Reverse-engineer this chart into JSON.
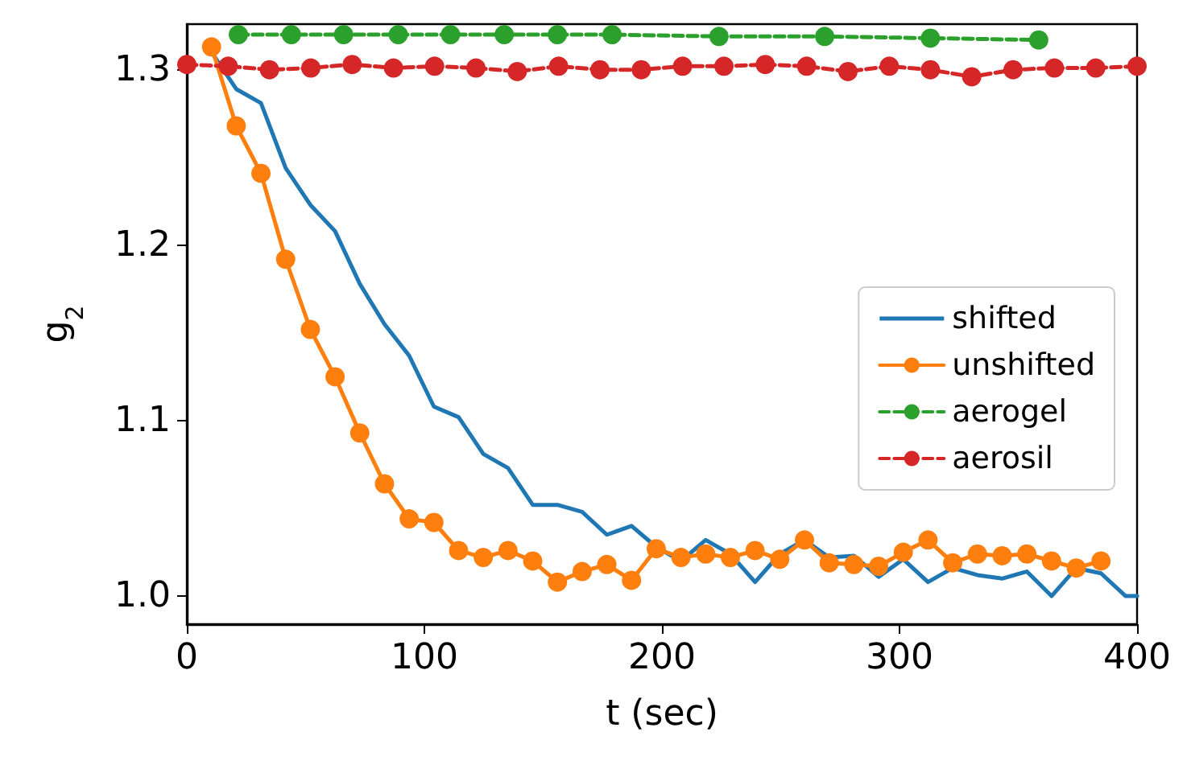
{
  "chart_data": {
    "type": "line",
    "xlabel": "t (sec)",
    "ylabel": "g$_{2}$",
    "xlim": [
      0,
      400
    ],
    "ylim": [
      0.984,
      1.326
    ],
    "xticks": [
      0,
      100,
      200,
      300,
      400
    ],
    "yticks": [
      {
        "value": 1.0,
        "label": "1.0"
      },
      {
        "value": 1.1,
        "label": "1.1"
      },
      {
        "value": 1.2,
        "label": "1.2"
      },
      {
        "value": 1.3,
        "label": "1.3"
      }
    ],
    "grid": false,
    "legend": "right",
    "series": [
      {
        "name": "shifted",
        "color": "#1f77b4",
        "marker": "none",
        "line_style": "solid",
        "x": [
          10.4,
          20.8,
          31.2,
          41.6,
          52,
          62.4,
          72.8,
          83.2,
          93.6,
          104,
          114.4,
          124.8,
          135.2,
          145.6,
          156,
          166.4,
          176.8,
          187.2,
          197.6,
          208,
          218.4,
          228.8,
          239.2,
          249.6,
          260,
          270.4,
          280.8,
          291.2,
          301.6,
          312,
          322.4,
          332.8,
          343.2,
          353.6,
          364,
          374.4,
          384.8,
          395.2,
          400
        ],
        "values": [
          1.31,
          1.289,
          1.281,
          1.244,
          1.223,
          1.208,
          1.178,
          1.155,
          1.137,
          1.108,
          1.102,
          1.081,
          1.073,
          1.052,
          1.052,
          1.048,
          1.035,
          1.04,
          1.028,
          1.02,
          1.032,
          1.024,
          1.008,
          1.024,
          1.032,
          1.022,
          1.023,
          1.011,
          1.021,
          1.008,
          1.016,
          1.012,
          1.01,
          1.014,
          1.0,
          1.016,
          1.013,
          1.0,
          1.0
        ]
      },
      {
        "name": "unshifted",
        "color": "#ff7f0e",
        "marker": "circle",
        "line_style": "solid",
        "x": [
          10.4,
          20.8,
          31.2,
          41.6,
          52,
          62.4,
          72.8,
          83.2,
          93.6,
          104,
          114.4,
          124.8,
          135.2,
          145.6,
          156,
          166.4,
          176.8,
          187.2,
          197.6,
          208,
          218.4,
          228.8,
          239.2,
          249.6,
          260,
          270.4,
          280.8,
          291.2,
          301.6,
          312,
          322.4,
          332.8,
          343.2,
          353.6,
          364,
          374.4,
          384.8
        ],
        "values": [
          1.313,
          1.268,
          1.241,
          1.192,
          1.152,
          1.125,
          1.093,
          1.064,
          1.044,
          1.042,
          1.026,
          1.022,
          1.026,
          1.02,
          1.008,
          1.014,
          1.018,
          1.009,
          1.027,
          1.022,
          1.024,
          1.022,
          1.026,
          1.021,
          1.032,
          1.019,
          1.018,
          1.017,
          1.025,
          1.032,
          1.019,
          1.024,
          1.023,
          1.024,
          1.02,
          1.016,
          1.02
        ]
      },
      {
        "name": "aerogel",
        "color": "#2ca02c",
        "marker": "circle",
        "line_style": "dashed",
        "x": [
          21.7,
          44,
          66,
          89,
          111,
          133.6,
          156,
          179,
          224,
          268.5,
          313,
          358.6
        ],
        "values": [
          1.32,
          1.32,
          1.32,
          1.32,
          1.32,
          1.32,
          1.32,
          1.32,
          1.319,
          1.319,
          1.318,
          1.317
        ]
      },
      {
        "name": "aerosil",
        "color": "#d62728",
        "marker": "circle",
        "line_style": "dashed",
        "x": [
          0,
          17.4,
          34.8,
          52.2,
          69.6,
          87,
          104.3,
          121.7,
          139.1,
          156.5,
          173.9,
          191.3,
          208.7,
          226.1,
          243.5,
          260.9,
          278.3,
          295.7,
          313,
          330.4,
          347.8,
          365.2,
          382.6,
          400
        ],
        "values": [
          1.303,
          1.302,
          1.3,
          1.301,
          1.303,
          1.301,
          1.302,
          1.301,
          1.299,
          1.302,
          1.3,
          1.3,
          1.302,
          1.302,
          1.303,
          1.302,
          1.299,
          1.302,
          1.3,
          1.296,
          1.3,
          1.301,
          1.301,
          1.302
        ]
      }
    ]
  }
}
